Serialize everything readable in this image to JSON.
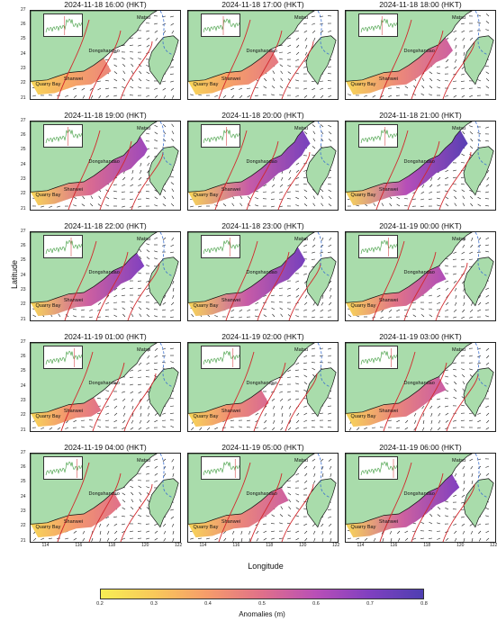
{
  "figure": {
    "y_label": "Latitude",
    "x_label": "Longitude",
    "lat_ticks": [
      "21",
      "22",
      "23",
      "24",
      "25",
      "26",
      "27"
    ],
    "lon_ticks": [
      "114",
      "116",
      "118",
      "120",
      "122"
    ],
    "place_labels": {
      "matsu": "Matsu",
      "dongshandao": "Dongshandao",
      "shanwei": "Shanwei",
      "quarry_bay": "Quarry Bay"
    },
    "colors": {
      "land": "#a9dcab",
      "sea": "#ffffff",
      "contour": "#d2282c",
      "dashed_contour": "#3a6fd0",
      "arrows": "#1a1a1a",
      "inset_line": "#3a9a3a",
      "inset_marker": "#d2282c"
    }
  },
  "panels": [
    {
      "time": "2024-11-18 16:00 (HKT)",
      "anomaly_max": 0.45,
      "extent_deg_lon": 4.5,
      "inset_marker_frac": 0.52
    },
    {
      "time": "2024-11-18 17:00 (HKT)",
      "anomaly_max": 0.48,
      "extent_deg_lon": 5.0,
      "inset_marker_frac": 0.55
    },
    {
      "time": "2024-11-18 18:00 (HKT)",
      "anomaly_max": 0.55,
      "extent_deg_lon": 5.8,
      "inset_marker_frac": 0.58
    },
    {
      "time": "2024-11-18 19:00 (HKT)",
      "anomaly_max": 0.65,
      "extent_deg_lon": 6.3,
      "inset_marker_frac": 0.61
    },
    {
      "time": "2024-11-18 20:00 (HKT)",
      "anomaly_max": 0.72,
      "extent_deg_lon": 6.5,
      "inset_marker_frac": 0.64
    },
    {
      "time": "2024-11-18 21:00 (HKT)",
      "anomaly_max": 0.78,
      "extent_deg_lon": 6.6,
      "inset_marker_frac": 0.67
    },
    {
      "time": "2024-11-18 22:00 (HKT)",
      "anomaly_max": 0.7,
      "extent_deg_lon": 6.0,
      "inset_marker_frac": 0.7
    },
    {
      "time": "2024-11-18 23:00 (HKT)",
      "anomaly_max": 0.72,
      "extent_deg_lon": 6.2,
      "inset_marker_frac": 0.73
    },
    {
      "time": "2024-11-19 00:00 (HKT)",
      "anomaly_max": 0.62,
      "extent_deg_lon": 5.5,
      "inset_marker_frac": 0.76
    },
    {
      "time": "2024-11-19 01:00 (HKT)",
      "anomaly_max": 0.5,
      "extent_deg_lon": 3.5,
      "inset_marker_frac": 0.79
    },
    {
      "time": "2024-11-19 02:00 (HKT)",
      "anomaly_max": 0.52,
      "extent_deg_lon": 4.5,
      "inset_marker_frac": 0.82
    },
    {
      "time": "2024-11-19 03:00 (HKT)",
      "anomaly_max": 0.56,
      "extent_deg_lon": 5.5,
      "inset_marker_frac": 0.84
    },
    {
      "time": "2024-11-19 04:00 (HKT)",
      "anomaly_max": 0.5,
      "extent_deg_lon": 4.6,
      "inset_marker_frac": 0.86
    },
    {
      "time": "2024-11-19 05:00 (HKT)",
      "anomaly_max": 0.55,
      "extent_deg_lon": 5.2,
      "inset_marker_frac": 0.88
    },
    {
      "time": "2024-11-19 06:00 (HKT)",
      "anomaly_max": 0.7,
      "extent_deg_lon": 6.0,
      "inset_marker_frac": 0.9
    }
  ],
  "colorbar": {
    "label": "Anomalies (m)",
    "min": 0.2,
    "max": 0.8,
    "ticks": [
      "0.2",
      "0.3",
      "0.4",
      "0.5",
      "0.6",
      "0.7",
      "0.8"
    ],
    "colors": [
      "#f7ee54",
      "#f9c85a",
      "#f59b6b",
      "#e0708a",
      "#b94fb7",
      "#8040c0",
      "#4e3fb1"
    ]
  }
}
